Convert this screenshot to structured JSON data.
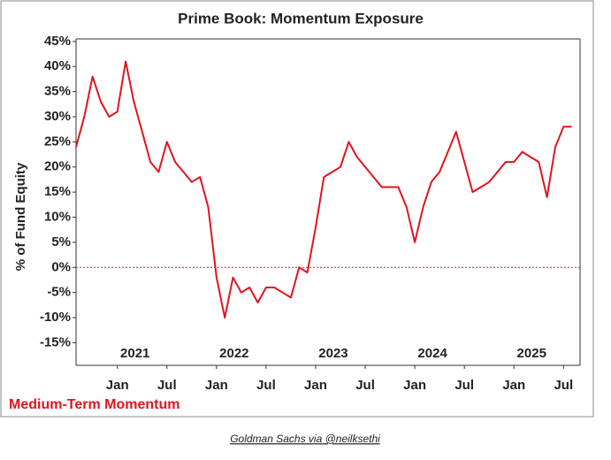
{
  "chart_data": {
    "type": "line",
    "title": "Prime Book: Momentum Exposure",
    "y_label": "% of Fund Equity",
    "caption": "Goldman Sachs via @neilksethi",
    "x": [
      "2020-08",
      "2020-09",
      "2020-10",
      "2020-11",
      "2020-12",
      "2021-01",
      "2021-02",
      "2021-03",
      "2021-04",
      "2021-05",
      "2021-06",
      "2021-07",
      "2021-08",
      "2021-09",
      "2021-10",
      "2021-11",
      "2021-12",
      "2022-01",
      "2022-02",
      "2022-03",
      "2022-04",
      "2022-05",
      "2022-06",
      "2022-07",
      "2022-08",
      "2022-09",
      "2022-10",
      "2022-11",
      "2022-12",
      "2023-01",
      "2023-02",
      "2023-03",
      "2023-04",
      "2023-05",
      "2023-06",
      "2023-07",
      "2023-08",
      "2023-09",
      "2023-10",
      "2023-11",
      "2023-12",
      "2024-01",
      "2024-02",
      "2024-03",
      "2024-04",
      "2024-05",
      "2024-06",
      "2024-07",
      "2024-08",
      "2024-09",
      "2024-10",
      "2024-11",
      "2024-12",
      "2025-01",
      "2025-02",
      "2025-03",
      "2025-04",
      "2025-05",
      "2025-06",
      "2025-07",
      "2025-08"
    ],
    "series": [
      {
        "name": "Medium-Term Momentum",
        "color": "#e0141e",
        "values": [
          24,
          30,
          38,
          33,
          30,
          31,
          41,
          33,
          27,
          21,
          19,
          25,
          21,
          19,
          17,
          18,
          12,
          -2,
          -10,
          -2,
          -5,
          -4,
          -7,
          -4,
          -4,
          -5,
          -6,
          0,
          -1,
          8,
          18,
          19,
          20,
          25,
          22,
          20,
          18,
          16,
          16,
          16,
          12,
          5,
          12,
          17,
          19,
          23,
          27,
          21,
          15,
          16,
          17,
          19,
          21,
          21,
          23,
          22,
          21,
          14,
          24,
          28,
          28
        ]
      }
    ],
    "xlim": [
      "2020-08",
      "2025-09"
    ],
    "xticks": [
      {
        "value": "2021-01",
        "label": "Jan"
      },
      {
        "value": "2021-07",
        "label": "Jul"
      },
      {
        "value": "2022-01",
        "label": "Jan"
      },
      {
        "value": "2022-07",
        "label": "Jul"
      },
      {
        "value": "2023-01",
        "label": "Jan"
      },
      {
        "value": "2023-07",
        "label": "Jul"
      },
      {
        "value": "2024-01",
        "label": "Jan"
      },
      {
        "value": "2024-07",
        "label": "Jul"
      },
      {
        "value": "2025-01",
        "label": "Jan"
      },
      {
        "value": "2025-07",
        "label": "Jul"
      }
    ],
    "years": [
      "2021",
      "2022",
      "2023",
      "2024",
      "2025"
    ],
    "ylim": [
      -19.5,
      45.5
    ],
    "yticks": [
      {
        "value": 45,
        "label": "45%"
      },
      {
        "value": 40,
        "label": "40%"
      },
      {
        "value": 35,
        "label": "35%"
      },
      {
        "value": 30,
        "label": "30%"
      },
      {
        "value": 25,
        "label": "25%"
      },
      {
        "value": 20,
        "label": "20%"
      },
      {
        "value": 15,
        "label": "15%"
      },
      {
        "value": 10,
        "label": "10%"
      },
      {
        "value": 5,
        "label": "5%"
      },
      {
        "value": 0,
        "label": "0%"
      },
      {
        "value": -5,
        "label": "-5%"
      },
      {
        "value": -10,
        "label": "-10%"
      },
      {
        "value": -15,
        "label": "-15%"
      }
    ],
    "zero_line": true
  }
}
